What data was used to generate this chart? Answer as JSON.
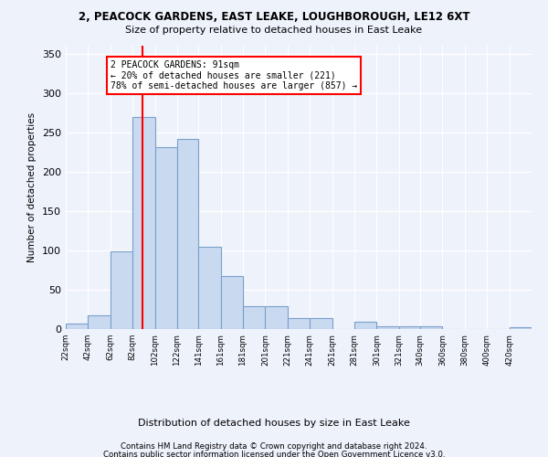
{
  "title": "2, PEACOCK GARDENS, EAST LEAKE, LOUGHBOROUGH, LE12 6XT",
  "subtitle": "Size of property relative to detached houses in East Leake",
  "xlabel": "Distribution of detached houses by size in East Leake",
  "ylabel": "Number of detached properties",
  "bar_edges": [
    22,
    42,
    62,
    82,
    102,
    122,
    141,
    161,
    181,
    201,
    221,
    241,
    261,
    281,
    301,
    321,
    340,
    360,
    380,
    400,
    420
  ],
  "bar_heights": [
    7,
    18,
    99,
    270,
    231,
    241,
    105,
    67,
    29,
    29,
    14,
    14,
    0,
    9,
    3,
    3,
    3,
    0,
    0,
    0,
    2
  ],
  "bar_color": "#c9d9f0",
  "bar_edge_color": "#7aa0cc",
  "property_line_x": 91,
  "property_line_color": "red",
  "annotation_text": "2 PEACOCK GARDENS: 91sqm\n← 20% of detached houses are smaller (221)\n78% of semi-detached houses are larger (857) →",
  "annotation_box_color": "white",
  "annotation_box_edge_color": "red",
  "ylim": [
    0,
    360
  ],
  "yticks": [
    0,
    50,
    100,
    150,
    200,
    250,
    300,
    350
  ],
  "footer_line1": "Contains HM Land Registry data © Crown copyright and database right 2024.",
  "footer_line2": "Contains public sector information licensed under the Open Government Licence v3.0.",
  "background_color": "#eef2fb",
  "grid_color": "white"
}
